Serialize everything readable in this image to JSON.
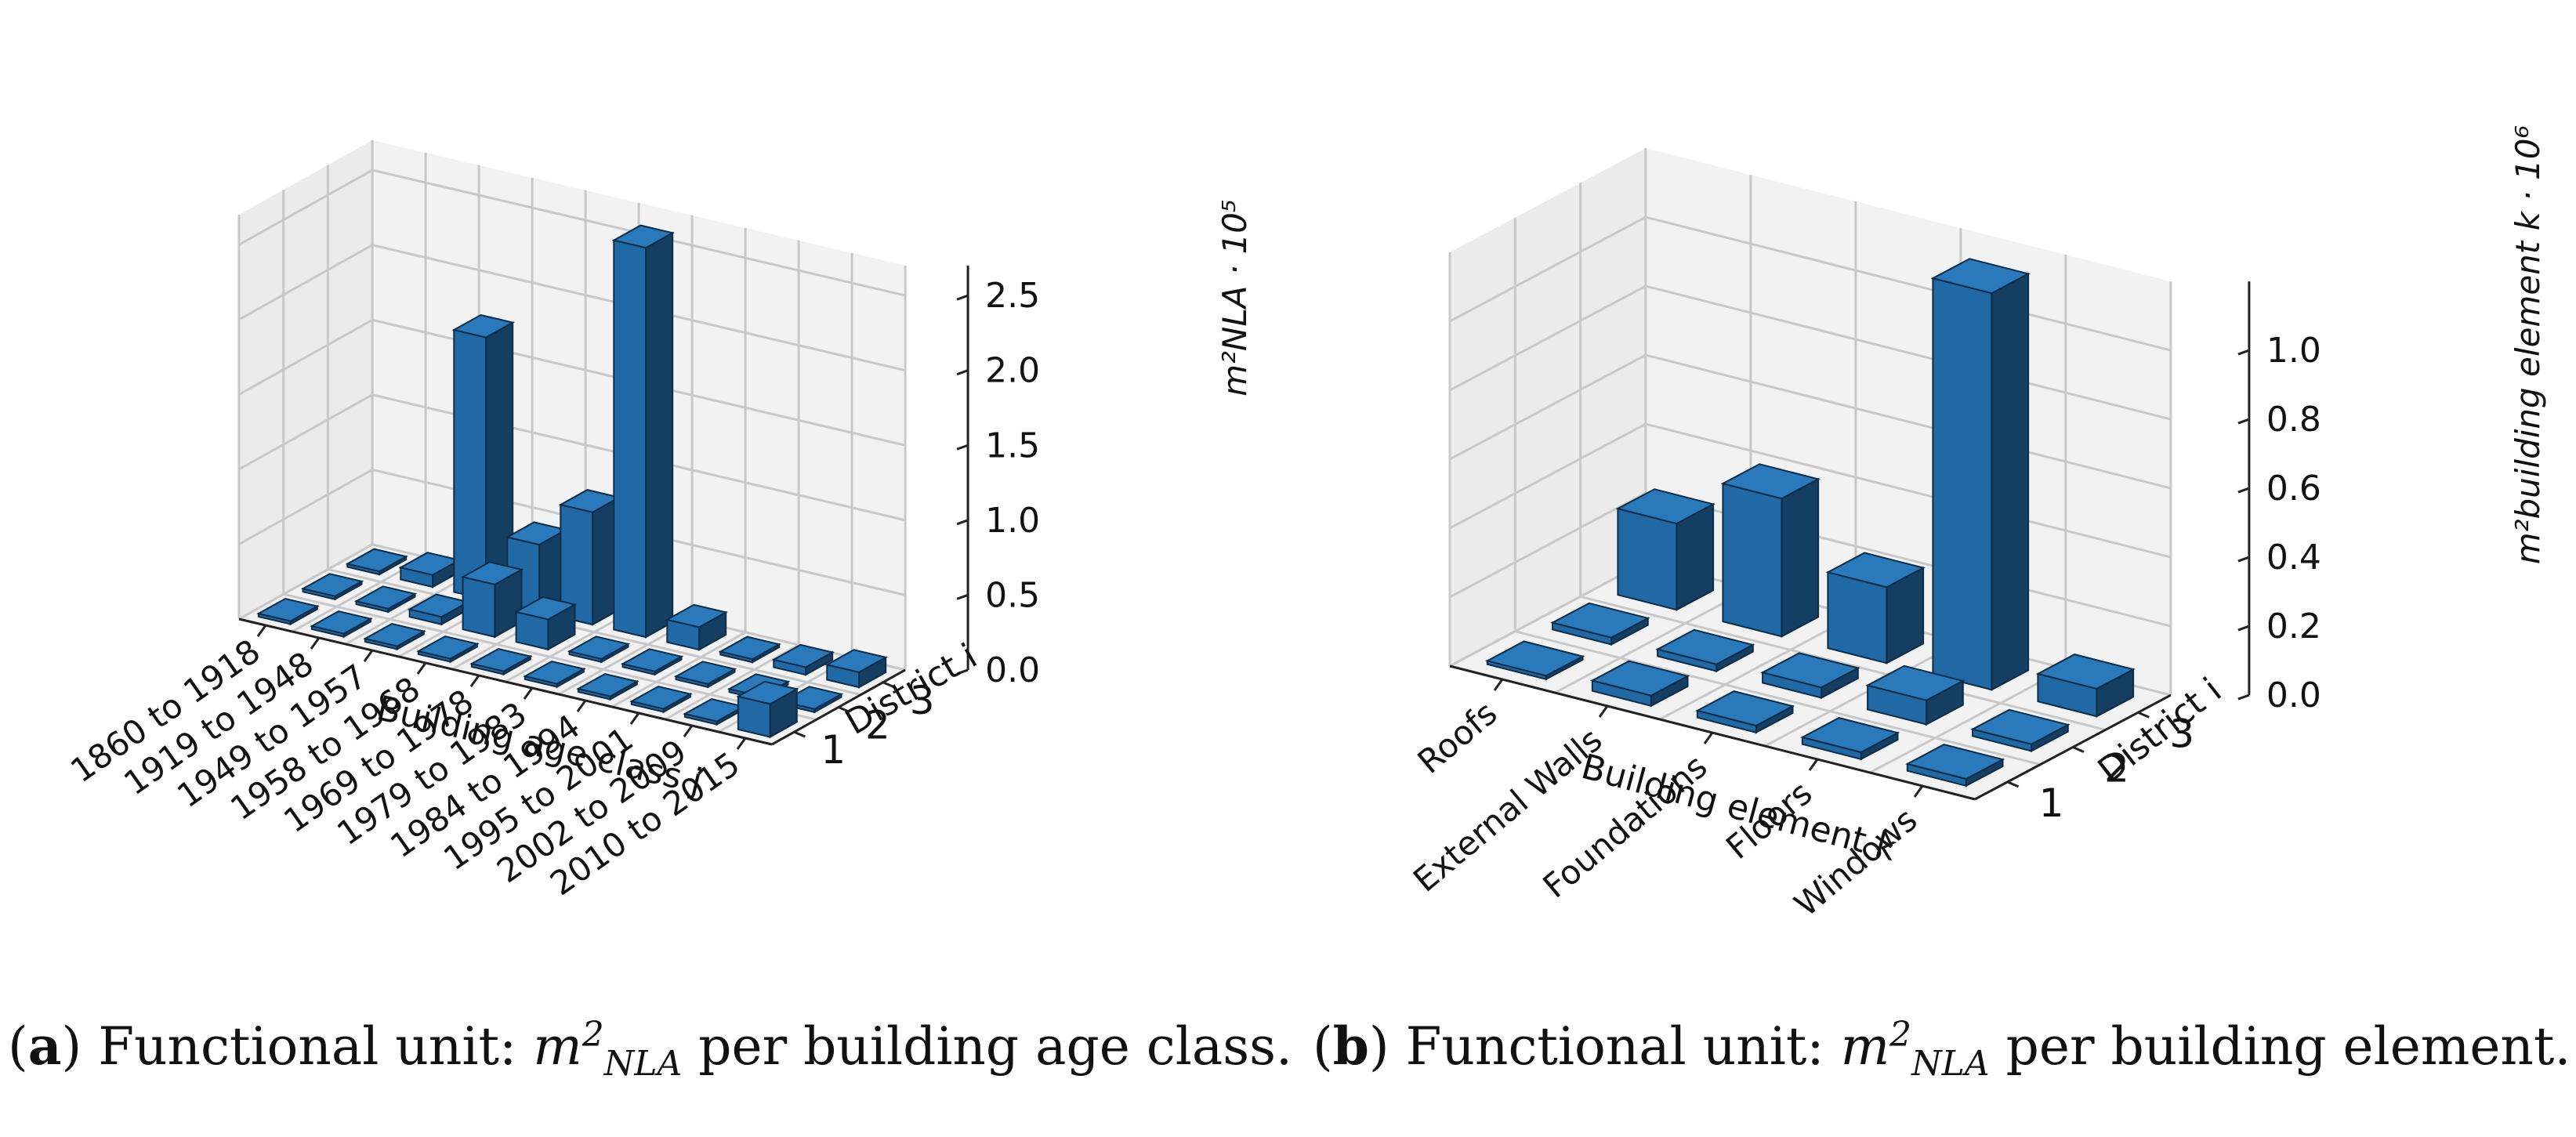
{
  "chart_data": [
    {
      "type": "bar3d",
      "panel_label": "a",
      "ylabel": "District i",
      "xlabel": "Building age class j",
      "zlabel": "m²NLA · 10⁵",
      "zlim": [
        0,
        2.7
      ],
      "zticks": [
        "0.0",
        "0.5",
        "1.0",
        "1.5",
        "2.0",
        "2.5"
      ],
      "categories": [
        "1860 to 1918",
        "1919 to 1948",
        "1949 to 1957",
        "1958 to 1968",
        "1969 to 1978",
        "1979 to 1983",
        "1984 to 1994",
        "1995 to 2001",
        "2002 to 2009",
        "2010 to 2015"
      ],
      "districts": [
        "1",
        "2",
        "3"
      ],
      "series": [
        {
          "name": "1",
          "values": [
            0.02,
            0.02,
            0.02,
            0.02,
            0.02,
            0.02,
            0.02,
            0.02,
            0.02,
            0.22
          ]
        },
        {
          "name": "2",
          "values": [
            0.02,
            0.02,
            0.05,
            0.35,
            0.2,
            0.02,
            0.02,
            0.02,
            0.02,
            0.02
          ]
        },
        {
          "name": "3",
          "values": [
            0.02,
            0.08,
            1.75,
            0.45,
            0.75,
            2.6,
            0.15,
            0.02,
            0.05,
            0.1
          ]
        }
      ],
      "caption": {
        "label": "a",
        "text_before": ") Functional unit: ",
        "unit_base": "m",
        "unit_sup": "2",
        "unit_sub": "NLA",
        "text_after": " per building age class."
      }
    },
    {
      "type": "bar3d",
      "panel_label": "b",
      "ylabel": "District i",
      "xlabel": "Building element k",
      "zlabel": "m²building element k · 10⁶",
      "zlim": [
        0,
        1.2
      ],
      "zticks": [
        "0.0",
        "0.2",
        "0.4",
        "0.6",
        "0.8",
        "1.0"
      ],
      "categories": [
        "Roofs",
        "External Walls",
        "Foundations",
        "Floors",
        "Windows"
      ],
      "districts": [
        "1",
        "2",
        "3"
      ],
      "series": [
        {
          "name": "1",
          "values": [
            0.01,
            0.03,
            0.02,
            0.02,
            0.02
          ]
        },
        {
          "name": "2",
          "values": [
            0.02,
            0.02,
            0.03,
            0.07,
            0.02
          ]
        },
        {
          "name": "3",
          "values": [
            0.25,
            0.4,
            0.22,
            1.15,
            0.08
          ]
        }
      ],
      "caption": {
        "label": "b",
        "text_before": ") Functional unit: ",
        "unit_base": "m",
        "unit_sup": "2",
        "unit_sub": "NLA",
        "text_after": " per building element."
      }
    }
  ],
  "colors": {
    "bar_front": "#2069a4",
    "bar_side": "#143f63",
    "bar_top": "#2a79bb",
    "pane": "#f2f2f2",
    "pane_side": "#ebebeb",
    "grid": "#c8c8c8"
  }
}
